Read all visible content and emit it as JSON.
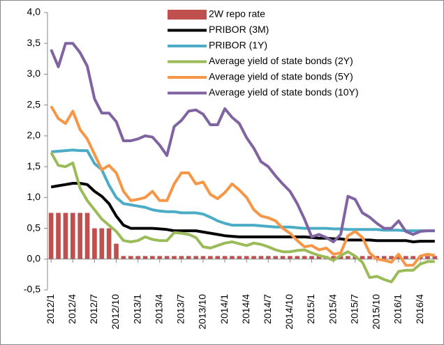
{
  "chart_data": {
    "type": "combo",
    "categories": [
      "2012/1",
      null,
      null,
      "2012/4",
      null,
      null,
      "2012/7",
      null,
      null,
      "2012/10",
      null,
      null,
      "2013/1",
      null,
      null,
      "2013/4",
      null,
      null,
      "2013/7",
      null,
      null,
      "2013/10",
      null,
      null,
      "2014/1",
      null,
      null,
      "2014/4",
      null,
      null,
      "2014/7",
      null,
      null,
      "2014/10",
      null,
      null,
      "2015/1",
      null,
      null,
      "2015/4",
      null,
      null,
      "2015/7",
      null,
      null,
      "2015/10",
      null,
      null,
      "2016/1",
      null,
      null,
      "2016/4",
      null,
      null
    ],
    "series": [
      {
        "name": "2W repo rate",
        "type": "bar",
        "color": "#c0504d",
        "values": [
          0.75,
          0.75,
          0.75,
          0.75,
          0.75,
          0.75,
          0.5,
          0.5,
          0.5,
          0.25,
          0.05,
          0.05,
          0.05,
          0.05,
          0.05,
          0.05,
          0.05,
          0.05,
          0.05,
          0.05,
          0.05,
          0.05,
          0.05,
          0.05,
          0.05,
          0.05,
          0.05,
          0.05,
          0.05,
          0.05,
          0.05,
          0.05,
          0.05,
          0.05,
          0.05,
          0.05,
          0.05,
          0.05,
          0.05,
          0.05,
          0.05,
          0.05,
          0.05,
          0.05,
          0.05,
          0.05,
          0.05,
          0.05,
          0.05,
          0.05,
          0.05,
          0.05,
          0.05,
          0.05
        ]
      },
      {
        "name": "PRIBOR (3M)",
        "type": "line",
        "color": "#000000",
        "values": [
          1.17,
          1.19,
          1.21,
          1.23,
          1.23,
          1.21,
          1.1,
          1.02,
          0.9,
          0.7,
          0.55,
          0.5,
          0.5,
          0.5,
          0.5,
          0.49,
          0.48,
          0.46,
          0.46,
          0.46,
          0.46,
          0.44,
          0.42,
          0.4,
          0.38,
          0.37,
          0.36,
          0.36,
          0.36,
          0.36,
          0.36,
          0.36,
          0.36,
          0.36,
          0.36,
          0.36,
          0.35,
          0.34,
          0.34,
          0.33,
          0.33,
          0.31,
          0.31,
          0.31,
          0.31,
          0.3,
          0.3,
          0.3,
          0.3,
          0.3,
          0.28,
          0.29,
          0.29,
          0.29
        ]
      },
      {
        "name": "PRIBOR (1Y)",
        "type": "line",
        "color": "#4bacc6",
        "values": [
          1.74,
          1.75,
          1.76,
          1.77,
          1.76,
          1.76,
          1.55,
          1.45,
          1.2,
          1.0,
          0.9,
          0.88,
          0.86,
          0.84,
          0.8,
          0.78,
          0.77,
          0.77,
          0.75,
          0.75,
          0.75,
          0.73,
          0.68,
          0.62,
          0.58,
          0.55,
          0.55,
          0.55,
          0.55,
          0.54,
          0.53,
          0.52,
          0.52,
          0.52,
          0.51,
          0.5,
          0.5,
          0.5,
          0.5,
          0.49,
          0.49,
          0.48,
          0.48,
          0.48,
          0.48,
          0.48,
          0.47,
          0.47,
          0.47,
          0.46,
          0.46,
          0.46,
          0.46,
          0.46
        ]
      },
      {
        "name": "Average yield of state bonds (2Y)",
        "type": "line",
        "color": "#9bbb59",
        "values": [
          1.73,
          1.52,
          1.5,
          1.56,
          1.15,
          0.95,
          0.8,
          0.65,
          0.55,
          0.45,
          0.3,
          0.28,
          0.3,
          0.36,
          0.32,
          0.3,
          0.3,
          0.43,
          0.42,
          0.4,
          0.35,
          0.2,
          0.18,
          0.22,
          0.26,
          0.28,
          0.25,
          0.22,
          0.26,
          0.24,
          0.2,
          0.15,
          0.12,
          0.12,
          0.14,
          0.15,
          0.1,
          0.06,
          0.03,
          -0.02,
          0.06,
          0.12,
          0.05,
          -0.05,
          -0.3,
          -0.28,
          -0.33,
          -0.37,
          -0.2,
          -0.18,
          -0.18,
          -0.08,
          -0.04,
          -0.04
        ]
      },
      {
        "name": "Average yield of state bonds (5Y)",
        "type": "line",
        "color": "#f79646",
        "values": [
          2.48,
          2.28,
          2.2,
          2.4,
          2.1,
          1.95,
          1.7,
          1.45,
          1.52,
          1.4,
          1.1,
          0.95,
          0.97,
          1.0,
          1.1,
          0.95,
          0.95,
          1.22,
          1.4,
          1.4,
          1.22,
          1.25,
          1.05,
          0.98,
          1.08,
          1.22,
          1.12,
          1.0,
          0.8,
          0.7,
          0.67,
          0.62,
          0.5,
          0.42,
          0.3,
          0.2,
          0.22,
          0.15,
          0.18,
          0.08,
          0.1,
          0.38,
          0.45,
          0.35,
          0.1,
          0.0,
          -0.02,
          -0.05,
          0.08,
          -0.1,
          -0.1,
          0.05,
          0.08,
          0.06
        ]
      },
      {
        "name": "Average yield of state bonds (10Y)",
        "type": "line",
        "color": "#8064a2",
        "values": [
          3.4,
          3.12,
          3.5,
          3.5,
          3.35,
          3.13,
          2.6,
          2.37,
          2.37,
          2.23,
          1.92,
          1.92,
          1.95,
          2.0,
          1.98,
          1.85,
          1.68,
          2.15,
          2.25,
          2.4,
          2.42,
          2.35,
          2.18,
          2.18,
          2.44,
          2.3,
          2.2,
          1.97,
          1.8,
          1.58,
          1.5,
          1.35,
          1.22,
          1.1,
          0.9,
          0.65,
          0.36,
          0.4,
          0.35,
          0.28,
          0.4,
          1.02,
          0.97,
          0.75,
          0.68,
          0.58,
          0.5,
          0.5,
          0.62,
          0.45,
          0.4,
          0.45,
          0.46,
          0.46
        ]
      }
    ],
    "ylim": [
      -0.5,
      4.0
    ],
    "yticks": [
      {
        "value": -0.5,
        "label": "-0,5"
      },
      {
        "value": 0,
        "label": "0,0"
      },
      {
        "value": 0.5,
        "label": "0,5"
      },
      {
        "value": 1.0,
        "label": "1,0"
      },
      {
        "value": 1.5,
        "label": "1,5"
      },
      {
        "value": 2.0,
        "label": "2,0"
      },
      {
        "value": 2.5,
        "label": "2,5"
      },
      {
        "value": 3.0,
        "label": "3,0"
      },
      {
        "value": 3.5,
        "label": "3,5"
      },
      {
        "value": 4.0,
        "label": "4,0"
      }
    ],
    "grid": false,
    "legend": "top"
  }
}
